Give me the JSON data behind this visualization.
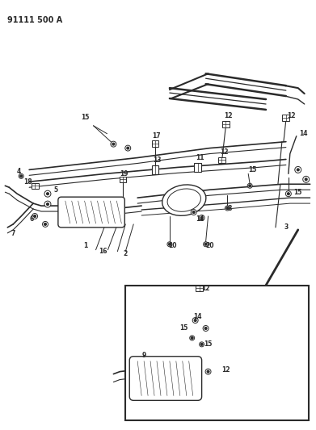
{
  "title_text": "91111 500 A",
  "bg_color": "#ffffff",
  "fg_color": "#2a2a2a",
  "figsize": [
    3.91,
    5.33
  ],
  "dpi": 100
}
